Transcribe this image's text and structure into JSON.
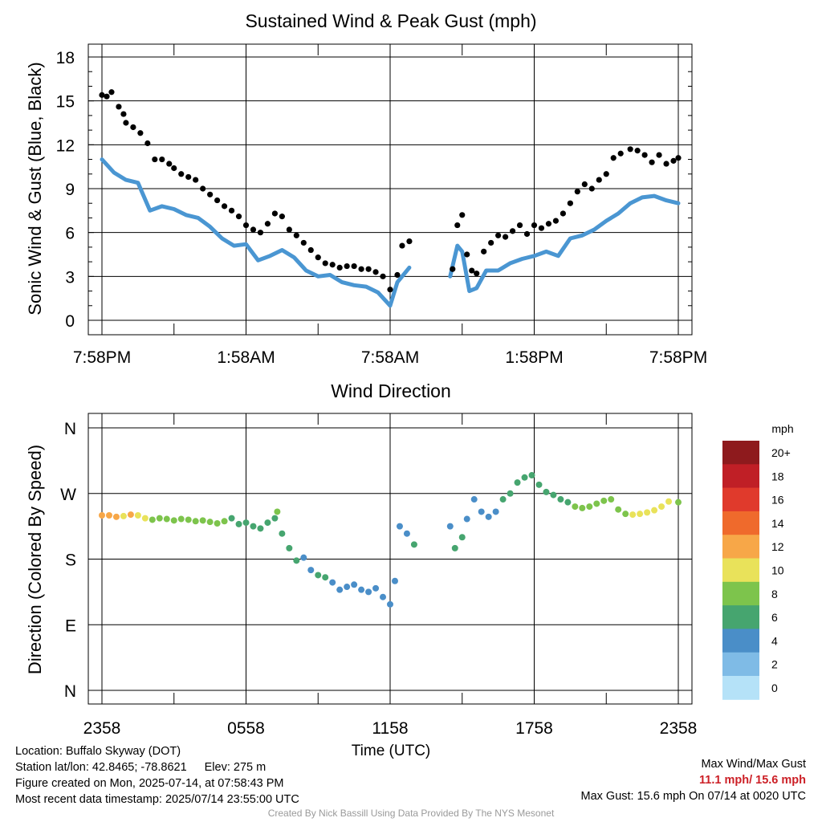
{
  "chart_data": [
    {
      "type": "scatter",
      "title": "Sustained Wind & Peak Gust (mph)",
      "ylabel": "Sonic Wind & Gust (Blue, Black)",
      "xlabel": "",
      "ylim": [
        0,
        18
      ],
      "yticks": [
        0,
        3,
        6,
        9,
        12,
        15,
        18
      ],
      "x_ticks_hours": [
        0,
        6,
        12,
        18,
        24
      ],
      "x_tick_labels": [
        "7:58PM",
        "1:58AM",
        "7:58AM",
        "1:58PM",
        "7:58PM"
      ],
      "grid": true,
      "x_unit": "hours since 7:58PM",
      "series": [
        {
          "name": "Sustained (Blue)",
          "color": "#4a96d2",
          "render": "line",
          "data": [
            [
              0,
              11.0
            ],
            [
              0.5,
              10.1
            ],
            [
              1,
              9.6
            ],
            [
              1.5,
              9.4
            ],
            [
              2,
              7.5
            ],
            [
              2.5,
              7.8
            ],
            [
              3,
              7.6
            ],
            [
              3.5,
              7.2
            ],
            [
              4,
              7.0
            ],
            [
              4.5,
              6.4
            ],
            [
              5,
              5.6
            ],
            [
              5.5,
              5.1
            ],
            [
              6,
              5.2
            ],
            [
              6.5,
              4.1
            ],
            [
              7,
              4.4
            ],
            [
              7.5,
              4.8
            ],
            [
              8,
              4.3
            ],
            [
              8.5,
              3.4
            ],
            [
              9,
              3.0
            ],
            [
              9.5,
              3.1
            ],
            [
              10,
              2.6
            ],
            [
              10.5,
              2.4
            ],
            [
              11,
              2.3
            ],
            [
              11.5,
              1.9
            ],
            [
              12,
              1.0
            ],
            [
              12.3,
              2.6
            ],
            [
              12.8,
              3.6
            ]
          ],
          "data2": [
            [
              14.5,
              3.0
            ],
            [
              14.8,
              5.1
            ],
            [
              15,
              4.7
            ],
            [
              15.3,
              2.0
            ],
            [
              15.6,
              2.2
            ],
            [
              16,
              3.4
            ],
            [
              16.5,
              3.4
            ],
            [
              17,
              3.9
            ],
            [
              17.5,
              4.2
            ],
            [
              18,
              4.4
            ],
            [
              18.5,
              4.7
            ],
            [
              19,
              4.4
            ],
            [
              19.5,
              5.6
            ],
            [
              20,
              5.8
            ],
            [
              20.5,
              6.2
            ],
            [
              21,
              6.8
            ],
            [
              21.5,
              7.3
            ],
            [
              22,
              8.0
            ],
            [
              22.5,
              8.4
            ],
            [
              23,
              8.5
            ],
            [
              23.5,
              8.2
            ],
            [
              24,
              8.0
            ]
          ]
        },
        {
          "name": "Gust (Black)",
          "color": "#000000",
          "render": "dots",
          "data": [
            [
              0,
              15.4
            ],
            [
              0.2,
              15.3
            ],
            [
              0.4,
              15.6
            ],
            [
              0.7,
              14.6
            ],
            [
              0.9,
              14.1
            ],
            [
              1,
              13.5
            ],
            [
              1.3,
              13.2
            ],
            [
              1.6,
              12.8
            ],
            [
              1.9,
              12.1
            ],
            [
              2.2,
              11.0
            ],
            [
              2.5,
              11.0
            ],
            [
              2.8,
              10.7
            ],
            [
              3,
              10.4
            ],
            [
              3.3,
              10.0
            ],
            [
              3.6,
              9.8
            ],
            [
              3.9,
              9.6
            ],
            [
              4.2,
              9.0
            ],
            [
              4.5,
              8.6
            ],
            [
              4.8,
              8.2
            ],
            [
              5.1,
              7.8
            ],
            [
              5.4,
              7.5
            ],
            [
              5.7,
              7.1
            ],
            [
              6,
              6.5
            ],
            [
              6.3,
              6.2
            ],
            [
              6.6,
              6.0
            ],
            [
              6.9,
              6.6
            ],
            [
              7.2,
              7.3
            ],
            [
              7.5,
              7.1
            ],
            [
              7.8,
              6.2
            ],
            [
              8.1,
              5.8
            ],
            [
              8.4,
              5.3
            ],
            [
              8.7,
              4.8
            ],
            [
              9,
              4.3
            ],
            [
              9.3,
              3.9
            ],
            [
              9.6,
              3.8
            ],
            [
              9.9,
              3.6
            ],
            [
              10.2,
              3.7
            ],
            [
              10.5,
              3.7
            ],
            [
              10.8,
              3.5
            ],
            [
              11.1,
              3.5
            ],
            [
              11.4,
              3.3
            ],
            [
              11.7,
              3.0
            ],
            [
              12,
              2.1
            ],
            [
              12.3,
              3.1
            ],
            [
              12.5,
              5.1
            ],
            [
              12.8,
              5.4
            ],
            [
              14.6,
              3.5
            ],
            [
              14.8,
              6.5
            ],
            [
              15,
              7.2
            ],
            [
              15.2,
              4.5
            ],
            [
              15.4,
              3.4
            ],
            [
              15.6,
              3.2
            ],
            [
              15.9,
              4.7
            ],
            [
              16.2,
              5.3
            ],
            [
              16.5,
              5.8
            ],
            [
              16.8,
              5.7
            ],
            [
              17.1,
              6.1
            ],
            [
              17.4,
              6.5
            ],
            [
              17.7,
              5.9
            ],
            [
              18,
              6.5
            ],
            [
              18.3,
              6.3
            ],
            [
              18.6,
              6.6
            ],
            [
              18.9,
              6.8
            ],
            [
              19.2,
              7.3
            ],
            [
              19.5,
              8.0
            ],
            [
              19.8,
              8.8
            ],
            [
              20.1,
              9.3
            ],
            [
              20.4,
              9.0
            ],
            [
              20.7,
              9.6
            ],
            [
              21,
              10.0
            ],
            [
              21.3,
              11.1
            ],
            [
              21.6,
              11.4
            ],
            [
              22,
              11.7
            ],
            [
              22.3,
              11.6
            ],
            [
              22.6,
              11.3
            ],
            [
              22.9,
              10.8
            ],
            [
              23.2,
              11.3
            ],
            [
              23.5,
              10.7
            ],
            [
              23.8,
              10.9
            ],
            [
              24,
              11.1
            ]
          ]
        }
      ]
    },
    {
      "type": "scatter",
      "title": "Wind Direction",
      "ylabel": "Direction (Colored By Speed)",
      "xlabel": "Time (UTC)",
      "ylim": [
        0,
        360
      ],
      "y_tick_labels": [
        "N",
        "E",
        "S",
        "W",
        "N"
      ],
      "x_ticks_hours": [
        0,
        6,
        12,
        18,
        24
      ],
      "x_tick_labels": [
        "2358",
        "0558",
        "1158",
        "1758",
        "2358"
      ],
      "grid": true,
      "colorbar": {
        "title": "mph",
        "labels": [
          "20+",
          "18",
          "16",
          "14",
          "12",
          "10",
          "8",
          "6",
          "4",
          "2",
          "0"
        ],
        "colors": [
          "#8e1a1d",
          "#c01f26",
          "#e03a2c",
          "#ef6a2c",
          "#f7a748",
          "#e9e25a",
          "#7dc44c",
          "#46a56f",
          "#4a8ec8",
          "#7fbbe6",
          "#b5e2f8"
        ]
      },
      "points": [
        [
          0,
          240,
          10
        ],
        [
          0.3,
          240,
          10
        ],
        [
          0.6,
          238,
          10
        ],
        [
          0.9,
          239,
          9
        ],
        [
          1.2,
          241,
          10
        ],
        [
          1.5,
          240,
          9
        ],
        [
          1.8,
          236,
          8
        ],
        [
          2.1,
          234,
          7
        ],
        [
          2.4,
          236,
          7
        ],
        [
          2.7,
          235,
          7
        ],
        [
          3,
          233,
          7
        ],
        [
          3.3,
          235,
          6
        ],
        [
          3.6,
          234,
          7
        ],
        [
          3.9,
          232,
          6
        ],
        [
          4.2,
          233,
          6
        ],
        [
          4.5,
          231,
          6
        ],
        [
          4.8,
          229,
          6
        ],
        [
          5.1,
          232,
          6
        ],
        [
          5.4,
          236,
          5
        ],
        [
          5.7,
          228,
          4
        ],
        [
          6,
          230,
          4
        ],
        [
          6.3,
          225,
          4
        ],
        [
          6.6,
          222,
          4
        ],
        [
          6.9,
          230,
          4
        ],
        [
          7.2,
          236,
          4
        ],
        [
          7.3,
          245,
          6
        ],
        [
          7.5,
          215,
          4
        ],
        [
          7.8,
          195,
          4
        ],
        [
          8.1,
          178,
          4
        ],
        [
          8.4,
          182,
          3
        ],
        [
          8.7,
          165,
          3
        ],
        [
          9,
          158,
          4
        ],
        [
          9.3,
          155,
          4
        ],
        [
          9.6,
          148,
          3
        ],
        [
          9.9,
          138,
          3
        ],
        [
          10.2,
          142,
          3
        ],
        [
          10.5,
          145,
          3
        ],
        [
          10.8,
          138,
          3
        ],
        [
          11.1,
          135,
          3
        ],
        [
          11.4,
          140,
          3
        ],
        [
          11.7,
          128,
          3
        ],
        [
          12,
          118,
          2
        ],
        [
          12.2,
          150,
          2
        ],
        [
          12.4,
          225,
          2
        ],
        [
          12.7,
          215,
          2
        ],
        [
          13,
          200,
          4
        ],
        [
          14.5,
          225,
          2
        ],
        [
          14.7,
          195,
          4
        ],
        [
          15,
          210,
          4
        ],
        [
          15.2,
          235,
          3
        ],
        [
          15.5,
          262,
          3
        ],
        [
          15.8,
          245,
          3
        ],
        [
          16.1,
          238,
          3
        ],
        [
          16.4,
          245,
          3
        ],
        [
          16.7,
          262,
          4
        ],
        [
          17,
          270,
          4
        ],
        [
          17.3,
          285,
          4
        ],
        [
          17.6,
          292,
          5
        ],
        [
          17.9,
          295,
          5
        ],
        [
          18.2,
          282,
          4
        ],
        [
          18.5,
          272,
          4
        ],
        [
          18.8,
          268,
          4
        ],
        [
          19.1,
          262,
          4
        ],
        [
          19.4,
          258,
          4
        ],
        [
          19.7,
          252,
          6
        ],
        [
          20,
          250,
          6
        ],
        [
          20.3,
          252,
          6
        ],
        [
          20.6,
          256,
          7
        ],
        [
          20.9,
          260,
          7
        ],
        [
          21.2,
          262,
          6
        ],
        [
          21.5,
          248,
          6
        ],
        [
          21.8,
          242,
          7
        ],
        [
          22.1,
          241,
          8
        ],
        [
          22.4,
          242,
          8
        ],
        [
          22.7,
          244,
          8
        ],
        [
          23,
          247,
          8
        ],
        [
          23.3,
          252,
          8
        ],
        [
          23.6,
          259,
          8
        ],
        [
          24,
          258,
          7
        ]
      ]
    }
  ],
  "footer": {
    "location": "Location: Buffalo Skyway (DOT)",
    "station": "Station lat/lon: 42.8465; -78.8621",
    "elev": "Elev: 275 m",
    "created": "Figure created on Mon, 2025-07-14, at 07:58:43 PM",
    "recent": "Most recent data timestamp: 2025/07/14 23:55:00 UTC",
    "max_label": "Max Wind/Max Gust",
    "max_values": "11.1 mph/ 15.6 mph",
    "max_gust_text": "Max Gust: 15.6 mph On 07/14 at 0020 UTC",
    "credit": "Created By Nick Bassill Using Data Provided By The NYS Mesonet"
  }
}
